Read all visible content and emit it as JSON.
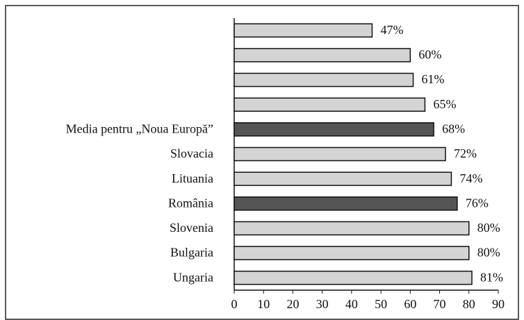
{
  "chart_data": {
    "type": "bar",
    "orientation": "horizontal",
    "categories": [
      null,
      null,
      null,
      null,
      "Media pentru „Noua Europă”",
      "Slovacia",
      "Lituania",
      "România",
      "Slovenia",
      "Bulgaria",
      "Ungaria"
    ],
    "values": [
      47,
      60,
      61,
      65,
      68,
      72,
      74,
      76,
      80,
      80,
      81
    ],
    "value_labels": [
      "47%",
      "60%",
      "61%",
      "65%",
      "68%",
      "72%",
      "74%",
      "76%",
      "80%",
      "80%",
      "81%"
    ],
    "colors": [
      "#d4d4d4",
      "#d4d4d4",
      "#d4d4d4",
      "#d4d4d4",
      "#555555",
      "#d4d4d4",
      "#d4d4d4",
      "#555555",
      "#d4d4d4",
      "#d4d4d4",
      "#d4d4d4"
    ],
    "xlim": [
      0,
      90
    ],
    "xticks": [
      0,
      10,
      20,
      30,
      40,
      50,
      60,
      70,
      80,
      90
    ],
    "grid": false
  }
}
